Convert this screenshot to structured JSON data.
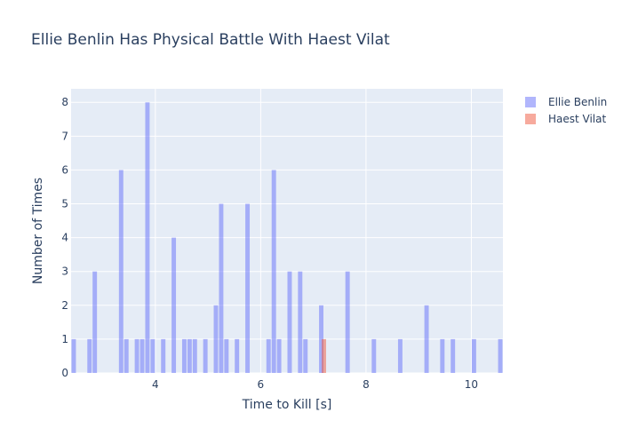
{
  "chart_data": {
    "type": "bar",
    "subtype": "overlaid histogram",
    "title": "Ellie Benlin Has Physical Battle With Haest Vilat",
    "xlabel": "Time to Kill [s]",
    "ylabel": "Number of Times",
    "xlim": [
      2.4,
      10.6
    ],
    "ylim": [
      0,
      8.4
    ],
    "x_ticks": [
      4,
      6,
      8,
      10
    ],
    "y_ticks": [
      0,
      1,
      2,
      3,
      4,
      5,
      6,
      7,
      8
    ],
    "bin_width": 0.1,
    "grid": true,
    "legend_position": "top-right",
    "plot_background": "#e5ecf6",
    "series": [
      {
        "name": "Ellie Benlin",
        "color": "#636efa",
        "opacity": 0.5,
        "bins": [
          {
            "x": 2.4,
            "y": 1
          },
          {
            "x": 2.7,
            "y": 1
          },
          {
            "x": 2.8,
            "y": 3
          },
          {
            "x": 3.3,
            "y": 6
          },
          {
            "x": 3.4,
            "y": 1
          },
          {
            "x": 3.6,
            "y": 1
          },
          {
            "x": 3.7,
            "y": 1
          },
          {
            "x": 3.8,
            "y": 8
          },
          {
            "x": 3.9,
            "y": 1
          },
          {
            "x": 4.1,
            "y": 1
          },
          {
            "x": 4.3,
            "y": 4
          },
          {
            "x": 4.5,
            "y": 1
          },
          {
            "x": 4.6,
            "y": 1
          },
          {
            "x": 4.7,
            "y": 1
          },
          {
            "x": 4.9,
            "y": 1
          },
          {
            "x": 5.1,
            "y": 2
          },
          {
            "x": 5.2,
            "y": 5
          },
          {
            "x": 5.3,
            "y": 1
          },
          {
            "x": 5.5,
            "y": 1
          },
          {
            "x": 5.7,
            "y": 5
          },
          {
            "x": 6.1,
            "y": 1
          },
          {
            "x": 6.2,
            "y": 6
          },
          {
            "x": 6.3,
            "y": 1
          },
          {
            "x": 6.5,
            "y": 3
          },
          {
            "x": 6.7,
            "y": 3
          },
          {
            "x": 6.8,
            "y": 1
          },
          {
            "x": 7.1,
            "y": 2
          },
          {
            "x": 7.6,
            "y": 3
          },
          {
            "x": 8.1,
            "y": 1
          },
          {
            "x": 8.6,
            "y": 1
          },
          {
            "x": 9.1,
            "y": 2
          },
          {
            "x": 9.4,
            "y": 1
          },
          {
            "x": 9.6,
            "y": 1
          },
          {
            "x": 10.0,
            "y": 1
          },
          {
            "x": 10.5,
            "y": 1
          }
        ]
      },
      {
        "name": "Haest Vilat",
        "color": "#ef553b",
        "opacity": 0.5,
        "bins": [
          {
            "x": 7.15,
            "y": 1
          }
        ]
      }
    ]
  }
}
